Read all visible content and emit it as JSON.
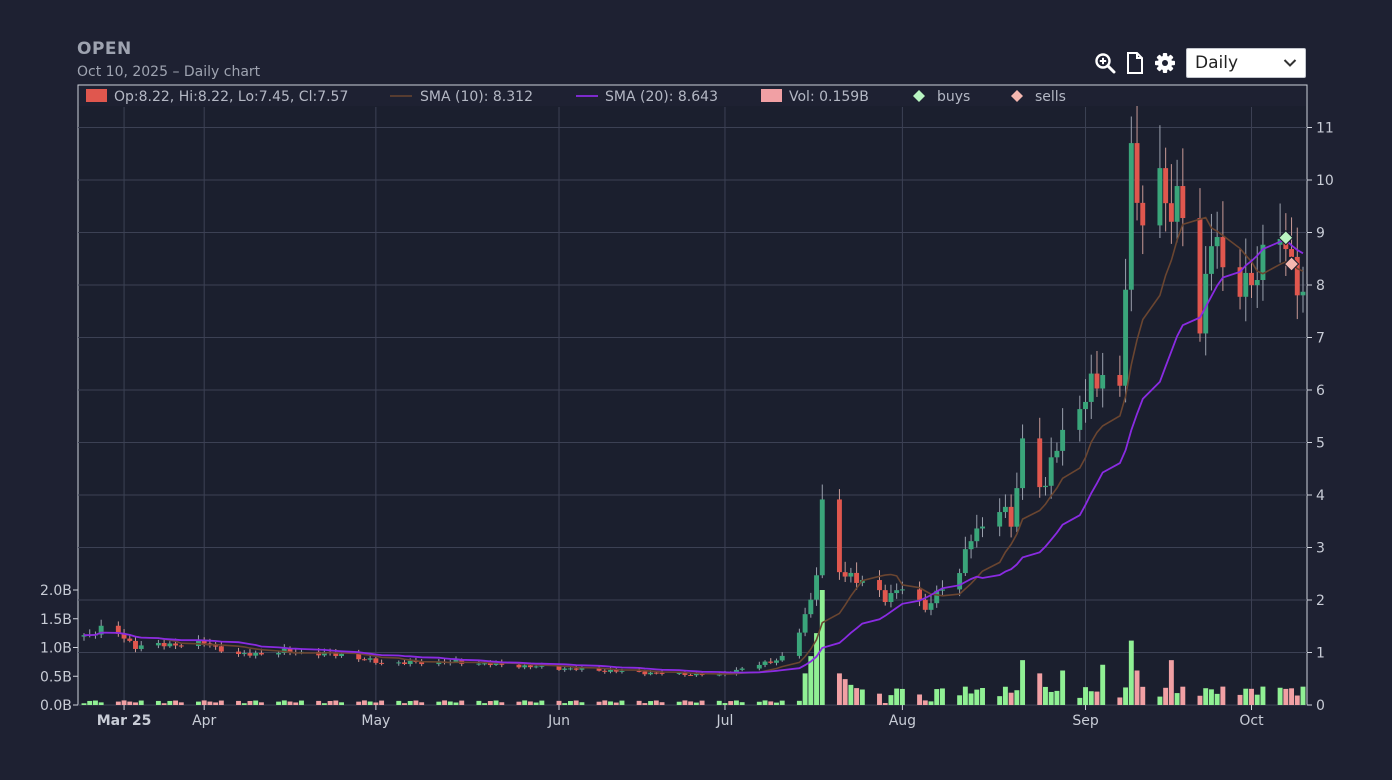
{
  "header": {
    "ticker": "OPEN",
    "subtitle": "Oct 10, 2025 – Daily chart"
  },
  "toolbar": {
    "zoom_icon": "zoom-in-icon",
    "export_icon": "document-icon",
    "settings_icon": "gear-icon",
    "period_value": "Daily"
  },
  "colors": {
    "background": "#1e2132",
    "plot_background": "#1b1f2e",
    "grid": "#3c4154",
    "up_candle": "#3aa57a",
    "down_candle": "#e0574e",
    "up_volume": "#90f094",
    "down_volume": "#f1a0a4",
    "sma10": "#6a4530",
    "sma20": "#8a2be2",
    "buy_marker": "#b9f5c2",
    "sell_marker": "#f5b8b0"
  },
  "chart_data": {
    "type": "candlestick",
    "legend": {
      "ohlc": "Op:8.22, Hi:8.22, Lo:7.45, Cl:7.57",
      "sma10": "SMA (10): 8.312",
      "sma20": "SMA (20): 8.643",
      "volume": "Vol: 0.159B",
      "buys": "buys",
      "sells": "sells"
    },
    "x_range": [
      "2025-03-11",
      "2025-10-10"
    ],
    "price_axis": {
      "ticks": [
        "0",
        "1",
        "2",
        "3",
        "4",
        "5",
        "6",
        "7",
        "8",
        "9",
        "10",
        "11"
      ],
      "range": [
        0,
        11.4
      ]
    },
    "volume_axis": {
      "ticks": [
        "0.0B",
        "0.5B",
        "1.0B",
        "1.5B",
        "2.0B"
      ],
      "range": [
        0,
        2.0
      ]
    },
    "month_labels": [
      {
        "label": "Mar 25",
        "date": "2025-03-18",
        "bold": true
      },
      {
        "label": "Apr",
        "date": "2025-04-01"
      },
      {
        "label": "May",
        "date": "2025-05-01"
      },
      {
        "label": "Jun",
        "date": "2025-06-02"
      },
      {
        "label": "Jul",
        "date": "2025-07-01"
      },
      {
        "label": "Aug",
        "date": "2025-08-01"
      },
      {
        "label": "Sep",
        "date": "2025-09-02"
      },
      {
        "label": "Oct",
        "date": "2025-10-01"
      }
    ],
    "close_anchors": [
      [
        "2025-03-11",
        1.3
      ],
      [
        "2025-03-14",
        1.45
      ],
      [
        "2025-03-17",
        1.35
      ],
      [
        "2025-03-20",
        1.12
      ],
      [
        "2025-04-01",
        1.18
      ],
      [
        "2025-04-07",
        0.95
      ],
      [
        "2025-04-15",
        1.02
      ],
      [
        "2025-04-25",
        0.96
      ],
      [
        "2025-05-02",
        0.8
      ],
      [
        "2025-05-15",
        0.82
      ],
      [
        "2025-06-02",
        0.7
      ],
      [
        "2025-06-20",
        0.6
      ],
      [
        "2025-06-30",
        0.57
      ],
      [
        "2025-07-08",
        0.8
      ],
      [
        "2025-07-11",
        0.9
      ],
      [
        "2025-07-14",
        1.4
      ],
      [
        "2025-07-16",
        2.0
      ],
      [
        "2025-07-17",
        2.6
      ],
      [
        "2025-07-18",
        3.8
      ],
      [
        "2025-07-21",
        2.5
      ],
      [
        "2025-07-25",
        2.4
      ],
      [
        "2025-07-29",
        2.0
      ],
      [
        "2025-08-01",
        2.3
      ],
      [
        "2025-08-05",
        1.8
      ],
      [
        "2025-08-08",
        2.3
      ],
      [
        "2025-08-11",
        2.5
      ],
      [
        "2025-08-13",
        3.2
      ],
      [
        "2025-08-18",
        3.8
      ],
      [
        "2025-08-20",
        3.4
      ],
      [
        "2025-08-22",
        5.0
      ],
      [
        "2025-08-26",
        4.1
      ],
      [
        "2025-08-28",
        5.0
      ],
      [
        "2025-09-02",
        5.9
      ],
      [
        "2025-09-04",
        6.1
      ],
      [
        "2025-09-05",
        6.4
      ],
      [
        "2025-09-08",
        6.0
      ],
      [
        "2025-09-10",
        10.4
      ],
      [
        "2025-09-11",
        9.3
      ],
      [
        "2025-09-15",
        10.1
      ],
      [
        "2025-09-17",
        9.3
      ],
      [
        "2025-09-19",
        9.5
      ],
      [
        "2025-09-22",
        7.2
      ],
      [
        "2025-09-24",
        9.0
      ],
      [
        "2025-09-26",
        8.2
      ],
      [
        "2025-09-30",
        8.1
      ],
      [
        "2025-10-02",
        8.1
      ],
      [
        "2025-10-06",
        9.2
      ],
      [
        "2025-10-08",
        8.4
      ],
      [
        "2025-10-10",
        7.57
      ]
    ],
    "volume_spikes": [
      [
        "2025-07-15",
        0.55
      ],
      [
        "2025-07-16",
        0.85
      ],
      [
        "2025-07-17",
        1.25
      ],
      [
        "2025-07-18",
        2.0
      ],
      [
        "2025-07-21",
        0.55
      ],
      [
        "2025-07-22",
        0.45
      ],
      [
        "2025-07-23",
        0.35
      ],
      [
        "2025-08-22",
        0.78
      ],
      [
        "2025-08-25",
        0.55
      ],
      [
        "2025-08-29",
        0.6
      ],
      [
        "2025-09-05",
        0.7
      ],
      [
        "2025-09-10",
        1.12
      ],
      [
        "2025-09-11",
        0.6
      ],
      [
        "2025-09-17",
        0.78
      ],
      [
        "2025-10-06",
        0.3
      ],
      [
        "2025-10-07",
        0.28
      ]
    ],
    "buys": [
      [
        "2025-10-07",
        8.9
      ]
    ],
    "sells": [
      [
        "2025-10-08",
        8.4
      ]
    ]
  }
}
